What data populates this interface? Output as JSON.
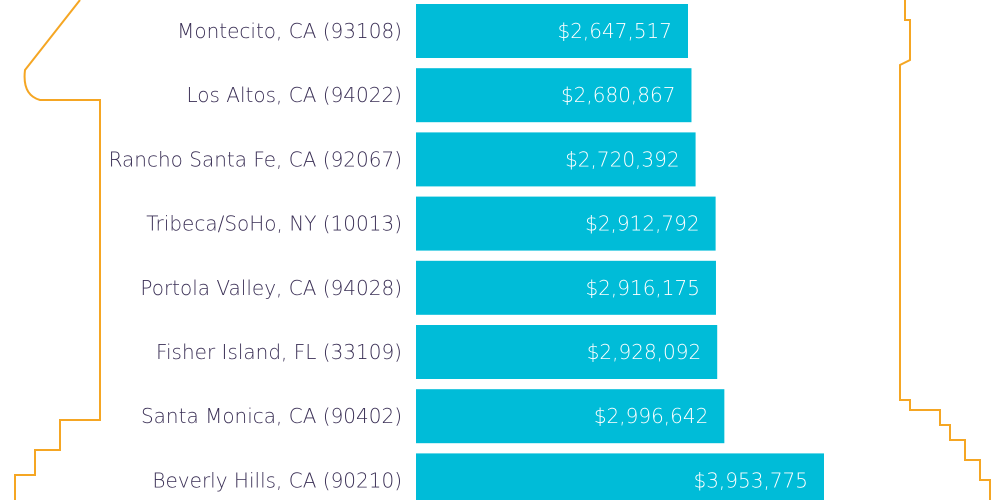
{
  "chart_data": {
    "type": "bar",
    "orientation": "horizontal",
    "categories": [
      "Montecito, CA (93108)",
      "Los Altos, CA (94022)",
      "Rancho Santa Fe, CA (92067)",
      "Tribeca/SoHo, NY (10013)",
      "Portola Valley, CA (94028)",
      "Fisher Island, FL (33109)",
      "Santa Monica, CA (90402)",
      "Beverly Hills, CA (90210)"
    ],
    "values": [
      2647517,
      2680867,
      2720392,
      2912792,
      2916175,
      2928092,
      2996642,
      3953775
    ],
    "value_labels": [
      "$2,647,517",
      "$2,680,867",
      "$2,720,392",
      "$2,912,792",
      "$2,916,175",
      "$2,928,092",
      "$2,996,642",
      "$3,953,775"
    ],
    "bar_color": "#00bcd8",
    "outline_color": "#f5a623",
    "label_color": "#3a2f55",
    "value_label_color": "#ffffff"
  }
}
